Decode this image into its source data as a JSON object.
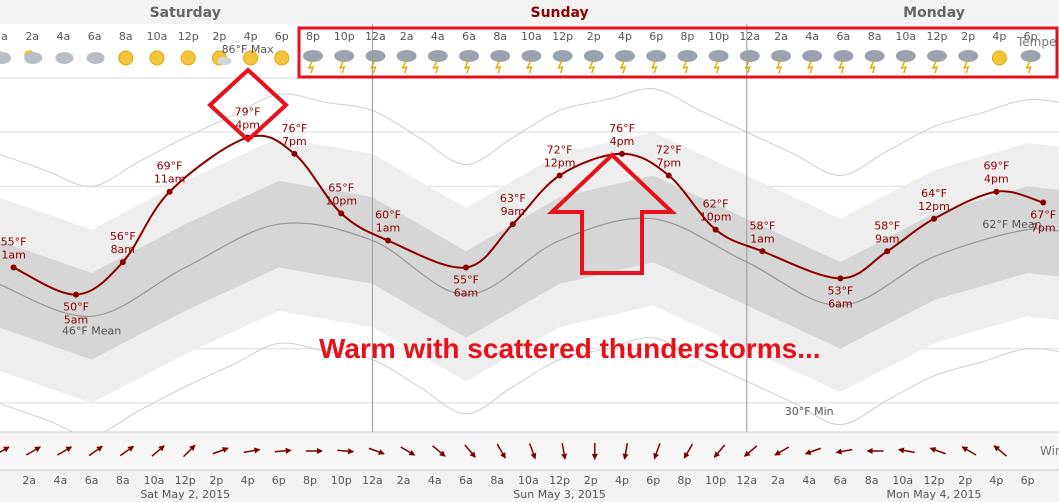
{
  "days": [
    "Saturday",
    "Sunday",
    "Monday"
  ],
  "hour_labels": [
    "2a",
    "4a",
    "6a",
    "8a",
    "10a",
    "12p",
    "2p",
    "4p",
    "6p",
    "8p",
    "10p",
    "12a",
    "2a",
    "4a",
    "6a",
    "8a",
    "10a",
    "12p",
    "2p",
    "4p",
    "6p",
    "8p",
    "10p",
    "12a",
    "2a",
    "4a",
    "6a",
    "8a",
    "10a",
    "12p",
    "2p",
    "4p",
    "6p"
  ],
  "top_hours": [
    "2a",
    "2a",
    "4a",
    "6a",
    "8a",
    "10a",
    "12p",
    "2p",
    "4p",
    "6p",
    "8p",
    "10p",
    "12a",
    "2a",
    "4a",
    "6a",
    "8a",
    "10a",
    "12p",
    "2p",
    "4p",
    "6p",
    "8p",
    "10p",
    "12a",
    "2a",
    "4a",
    "6a",
    "8a",
    "10a",
    "12p",
    "2p",
    "4p",
    "6p"
  ],
  "top_icons": [
    "partly-cloudy",
    "partly-cloudy",
    "cloudy",
    "cloudy",
    "sunny",
    "sunny",
    "sunny",
    "partly-sunny",
    "sunny",
    "sunny",
    "thunderstorm",
    "thunderstorm",
    "thunderstorm",
    "thunderstorm",
    "thunderstorm",
    "thunderstorm",
    "thunderstorm",
    "thunderstorm",
    "thunderstorm",
    "thunderstorm",
    "thunderstorm",
    "thunderstorm",
    "thunderstorm",
    "thunderstorm",
    "thunderstorm",
    "thunderstorm",
    "thunderstorm",
    "thunderstorm",
    "thunderstorm",
    "thunderstorm",
    "thunderstorm",
    "thunderstorm",
    "sunny",
    "thunderstorm"
  ],
  "dates": [
    "Sat May 2, 2015",
    "Sun May 3, 2015",
    "Mon May 4, 2015"
  ],
  "temp_series_label": "Tempe",
  "wind_label": "Win",
  "annotation": "Warm with scattered thunderstorms...",
  "colors": {
    "temp_line": "#8b0000",
    "annotation": "#e8101a",
    "band_outer": "#eeeeee",
    "band_inner": "#d6d6d6",
    "mean_line": "#999999",
    "grid": "#dddddd",
    "day_divider": "#999999"
  },
  "chart_data": {
    "type": "line",
    "x_unit": "hours from Sat May 2 00:00",
    "ylim": [
      25,
      90
    ],
    "grid": true,
    "series": [
      {
        "name": "Temperature",
        "x": [
          1,
          5,
          8,
          11,
          16,
          19,
          22,
          25,
          30,
          33,
          36,
          40,
          43,
          46,
          49,
          54,
          57,
          60,
          64,
          67
        ],
        "values": [
          55,
          50,
          56,
          69,
          79,
          76,
          65,
          60,
          55,
          63,
          72,
          76,
          72,
          62,
          58,
          53,
          58,
          64,
          69,
          67
        ]
      }
    ],
    "point_labels": [
      {
        "x": 1,
        "temp": "55°F",
        "time": "1am"
      },
      {
        "x": 5,
        "temp": "50°F",
        "time": "5am"
      },
      {
        "x": 8,
        "temp": "56°F",
        "time": "8am"
      },
      {
        "x": 11,
        "temp": "69°F",
        "time": "11am"
      },
      {
        "x": 16,
        "temp": "79°F",
        "time": "4pm"
      },
      {
        "x": 19,
        "temp": "76°F",
        "time": "7pm"
      },
      {
        "x": 22,
        "temp": "65°F",
        "time": "10pm"
      },
      {
        "x": 25,
        "temp": "60°F",
        "time": "1am"
      },
      {
        "x": 30,
        "temp": "55°F",
        "time": "6am"
      },
      {
        "x": 33,
        "temp": "63°F",
        "time": "9am"
      },
      {
        "x": 36,
        "temp": "72°F",
        "time": "12pm"
      },
      {
        "x": 40,
        "temp": "76°F",
        "time": "4pm"
      },
      {
        "x": 43,
        "temp": "72°F",
        "time": "7pm"
      },
      {
        "x": 46,
        "temp": "62°F",
        "time": "10pm"
      },
      {
        "x": 49,
        "temp": "58°F",
        "time": "1am"
      },
      {
        "x": 54,
        "temp": "53°F",
        "time": "6am"
      },
      {
        "x": 57,
        "temp": "58°F",
        "time": "9am"
      },
      {
        "x": 60,
        "temp": "64°F",
        "time": "12pm"
      },
      {
        "x": 64,
        "temp": "69°F",
        "time": "4pm"
      },
      {
        "x": 67,
        "temp": "67°F",
        "time": "7pm"
      }
    ],
    "mean": {
      "x": [
        0,
        6,
        12,
        18,
        24,
        30,
        36,
        42,
        48,
        54,
        60,
        66,
        69
      ],
      "values": [
        52,
        46,
        55,
        63,
        60,
        50,
        60,
        64,
        56,
        48,
        57,
        62,
        61
      ],
      "labels": [
        {
          "x": 6,
          "text": "46°F Mean"
        },
        {
          "x": 65,
          "text": "62°F Mean"
        }
      ]
    },
    "record_max_label": {
      "x": 16,
      "text": "86°F Max"
    },
    "record_min_label": {
      "x": 52,
      "text": "30°F Min"
    },
    "wind_directions_deg": [
      60,
      60,
      60,
      55,
      55,
      50,
      45,
      70,
      80,
      85,
      90,
      95,
      110,
      120,
      130,
      140,
      150,
      160,
      170,
      180,
      190,
      200,
      210,
      220,
      230,
      240,
      250,
      260,
      270,
      280,
      290,
      300,
      310,
      320,
      330
    ]
  }
}
